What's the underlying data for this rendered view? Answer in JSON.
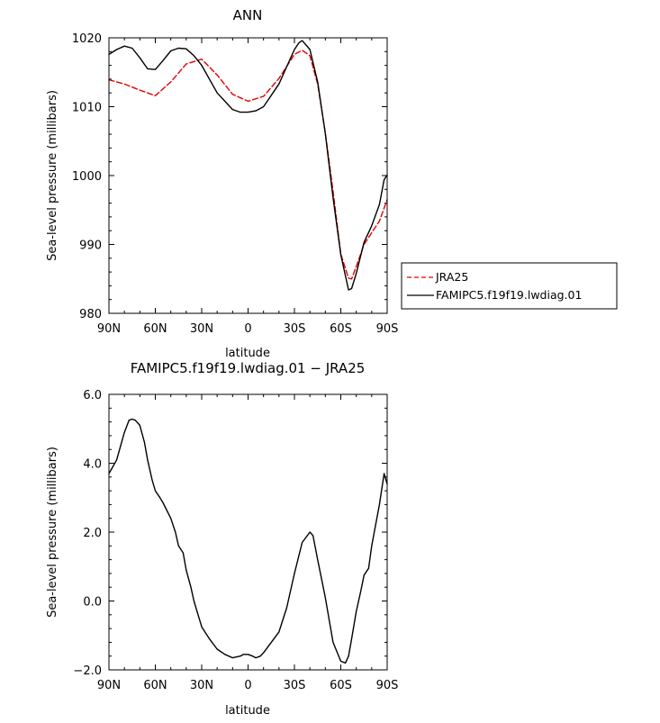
{
  "chart_data": [
    {
      "type": "line",
      "title": "ANN",
      "xlabel": "latitude",
      "ylabel": "Sea-level pressure (millibars)",
      "xlim": [
        90,
        -90
      ],
      "ylim": [
        980,
        1020
      ],
      "xticks": [
        90,
        60,
        30,
        0,
        -30,
        -60,
        -90
      ],
      "xtick_labels": [
        "90N",
        "60N",
        "30N",
        "0",
        "30S",
        "60S",
        "90S"
      ],
      "yticks": [
        980,
        990,
        1000,
        1010,
        1020
      ],
      "ytick_labels": [
        "980",
        "990",
        "1000",
        "1010",
        "1020"
      ],
      "grid": false,
      "legend_position": "right",
      "series": [
        {
          "name": "JRA25",
          "color": "#e00000",
          "style": "dashed",
          "x": [
            90,
            80,
            70,
            60,
            50,
            40,
            30,
            20,
            10,
            0,
            -10,
            -20,
            -30,
            -35,
            -40,
            -45,
            -50,
            -55,
            -60,
            -65,
            -67,
            -70,
            -75,
            -80,
            -85,
            -90
          ],
          "y": [
            1013.9,
            1013.3,
            1012.4,
            1011.6,
            1013.6,
            1016.2,
            1016.9,
            1014.6,
            1011.8,
            1010.8,
            1011.5,
            1014.1,
            1017.6,
            1018.2,
            1017.4,
            1013.3,
            1006.2,
            997.7,
            988.6,
            985.1,
            985.0,
            986.8,
            990.0,
            991.7,
            993.4,
            996.5
          ]
        },
        {
          "name": "FAMIPC5.f19f19.lwdiag.01",
          "color": "#000000",
          "style": "solid",
          "x": [
            90,
            85,
            80,
            75,
            70,
            65,
            60,
            55,
            50,
            45,
            40,
            35,
            30,
            20,
            10,
            5,
            0,
            -5,
            -10,
            -20,
            -25,
            -30,
            -33,
            -35,
            -40,
            -45,
            -50,
            -55,
            -60,
            -65,
            -67,
            -70,
            -75,
            -80,
            -85,
            -88,
            -90
          ],
          "y": [
            1017.6,
            1018.3,
            1018.8,
            1018.5,
            1017.1,
            1015.5,
            1015.4,
            1016.7,
            1018.1,
            1018.5,
            1018.4,
            1017.4,
            1016.0,
            1012.0,
            1009.6,
            1009.2,
            1009.2,
            1009.4,
            1010.0,
            1013.3,
            1015.8,
            1018.3,
            1019.3,
            1019.6,
            1018.3,
            1013.6,
            1006.1,
            996.8,
            988.5,
            983.4,
            983.6,
            985.8,
            990.3,
            992.7,
            995.8,
            999.4,
            1000.1
          ]
        }
      ]
    },
    {
      "type": "line",
      "title": "FAMIPC5.f19f19.lwdiag.01 − JRA25",
      "xlabel": "latitude",
      "ylabel": "Sea-level pressure (millibars)",
      "xlim": [
        90,
        -90
      ],
      "ylim": [
        -2.0,
        6.0
      ],
      "xticks": [
        90,
        60,
        30,
        0,
        -30,
        -60,
        -90
      ],
      "xtick_labels": [
        "90N",
        "60N",
        "30N",
        "0",
        "30S",
        "60S",
        "90S"
      ],
      "yticks": [
        -2,
        0,
        2,
        4,
        6
      ],
      "ytick_labels": [
        "−2.0",
        "0.0",
        "2.0",
        "4.0",
        "6.0"
      ],
      "grid": false,
      "series": [
        {
          "color": "#000000",
          "style": "solid",
          "x": [
            90,
            85,
            80,
            77,
            75,
            73,
            70,
            67,
            65,
            62,
            60,
            57,
            55,
            50,
            47,
            45,
            42,
            40,
            37,
            35,
            30,
            25,
            20,
            15,
            10,
            5,
            3,
            0,
            -3,
            -5,
            -8,
            -10,
            -15,
            -20,
            -25,
            -30,
            -35,
            -40,
            -42,
            -45,
            -50,
            -55,
            -60,
            -63,
            -65,
            -67,
            -70,
            -73,
            -75,
            -78,
            -80,
            -85,
            -88,
            -90
          ],
          "y": [
            3.7,
            4.1,
            4.9,
            5.25,
            5.28,
            5.25,
            5.1,
            4.6,
            4.1,
            3.5,
            3.2,
            3.0,
            2.85,
            2.4,
            2.0,
            1.6,
            1.4,
            0.9,
            0.4,
            0.0,
            -0.75,
            -1.1,
            -1.4,
            -1.55,
            -1.65,
            -1.6,
            -1.55,
            -1.55,
            -1.6,
            -1.65,
            -1.6,
            -1.5,
            -1.2,
            -0.9,
            -0.2,
            0.8,
            1.7,
            2.0,
            1.9,
            1.2,
            0.1,
            -1.2,
            -1.75,
            -1.8,
            -1.6,
            -1.1,
            -0.3,
            0.3,
            0.75,
            0.95,
            1.6,
            2.8,
            3.7,
            3.4
          ]
        }
      ]
    }
  ]
}
